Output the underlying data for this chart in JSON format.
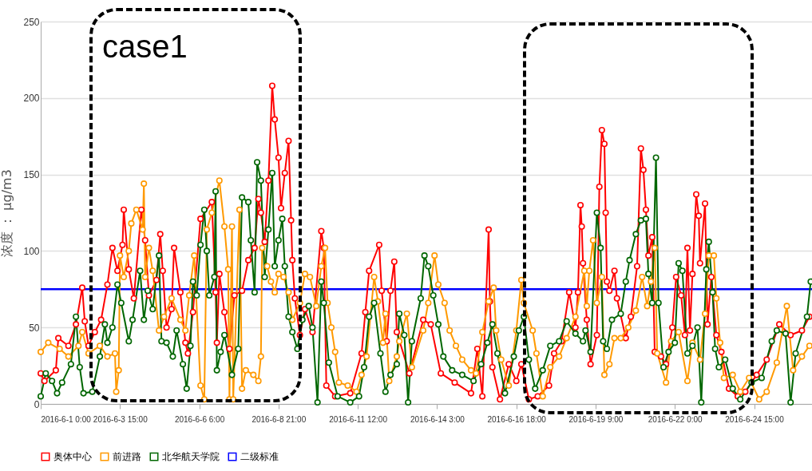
{
  "chart_data": {
    "type": "line",
    "ylabel": "浓度 ： μg/m3",
    "annotations": [
      "case1"
    ],
    "xlim": [
      "2016-06-01T00:00",
      "2016-06-26T13:00"
    ],
    "xticks": [
      {
        "value": "2016-06-01T00:00",
        "label": "2016-6-1 0:00"
      },
      {
        "value": "2016-06-03T15:00",
        "label": "2016-6-3 15:00"
      },
      {
        "value": "2016-06-06T06:00",
        "label": "2016-6-6 6:00"
      },
      {
        "value": "2016-06-08T21:00",
        "label": "2016-6-8 21:00"
      },
      {
        "value": "2016-06-11T12:00",
        "label": "2016-6-11 12:00"
      },
      {
        "value": "2016-06-14T03:00",
        "label": "2016-6-14 3:00"
      },
      {
        "value": "2016-06-16T18:00",
        "label": "2016-6-16 18:00"
      },
      {
        "value": "2016-06-19T09:00",
        "label": "2016-6-19 9:00"
      },
      {
        "value": "2016-06-22T00:00",
        "label": "2016-6-22 0:00"
      },
      {
        "value": "2016-06-24T15:00",
        "label": "2016-6-24 15:00"
      }
    ],
    "ylim": [
      0,
      250
    ],
    "yticks": [
      0,
      50,
      100,
      150,
      200,
      250
    ],
    "grid": "y",
    "legend": "bottom",
    "marker": "circle",
    "ref_lines": [
      {
        "axis": "y",
        "value": 75,
        "label": "二级标准",
        "color": "#0000ff"
      }
    ],
    "series": [
      {
        "name": "奥体中心",
        "color": "#ff0000",
        "x": [
          "2016-06-01T00:00",
          "2016-06-01T03:00",
          "2016-06-01T12:00",
          "2016-06-01T14:00",
          "2016-06-01T22:00",
          "2016-06-02T04:00",
          "2016-06-02T09:00",
          "2016-06-02T11:00",
          "2016-06-02T14:00",
          "2016-06-02T19:00",
          "2016-06-03T00:00",
          "2016-06-03T05:00",
          "2016-06-03T09:00",
          "2016-06-03T13:00",
          "2016-06-03T17:00",
          "2016-06-03T18:00",
          "2016-06-03T22:00",
          "2016-06-04T02:00",
          "2016-06-04T08:00",
          "2016-06-04T11:00",
          "2016-06-04T14:00",
          "2016-06-04T20:00",
          "2016-06-04T23:00",
          "2016-06-05T01:00",
          "2016-06-05T04:00",
          "2016-06-05T08:00",
          "2016-06-05T10:00",
          "2016-06-05T15:00",
          "2016-06-05T19:00",
          "2016-06-05T21:00",
          "2016-06-06T01:00",
          "2016-06-06T07:00",
          "2016-06-06T16:00",
          "2016-06-06T19:00",
          "2016-06-06T20:00",
          "2016-06-06T22:00",
          "2016-06-07T02:00",
          "2016-06-07T06:00",
          "2016-06-07T10:00",
          "2016-06-07T16:00",
          "2016-06-07T21:00",
          "2016-06-08T02:00",
          "2016-06-08T05:00",
          "2016-06-08T07:00",
          "2016-06-08T10:00",
          "2016-06-08T13:00",
          "2016-06-08T16:00",
          "2016-06-08T18:00",
          "2016-06-08T21:00",
          "2016-06-08T23:00",
          "2016-06-09T02:00",
          "2016-06-09T05:00",
          "2016-06-09T07:00",
          "2016-06-09T08:00",
          "2016-06-09T10:00",
          "2016-06-09T14:00",
          "2016-06-09T18:00",
          "2016-06-10T00:00",
          "2016-06-10T07:00",
          "2016-06-10T09:00",
          "2016-06-10T11:00",
          "2016-06-10T18:00",
          "2016-06-11T06:00",
          "2016-06-11T15:00",
          "2016-06-11T18:00",
          "2016-06-11T21:00",
          "2016-06-12T05:00",
          "2016-06-12T07:00",
          "2016-06-12T11:00",
          "2016-06-12T14:00",
          "2016-06-12T17:00",
          "2016-06-12T19:00",
          "2016-06-13T05:00",
          "2016-06-13T16:00",
          "2016-06-13T22:00",
          "2016-06-14T06:00",
          "2016-06-14T17:00",
          "2016-06-15T06:00",
          "2016-06-15T11:00",
          "2016-06-15T15:00",
          "2016-06-15T20:00",
          "2016-06-15T21:00",
          "2016-06-15T23:00",
          "2016-06-16T05:00",
          "2016-06-16T12:00",
          "2016-06-16T18:00",
          "2016-06-16T22:00",
          "2016-06-17T04:00",
          "2016-06-17T11:00",
          "2016-06-17T20:00",
          "2016-06-18T00:00",
          "2016-06-18T06:00",
          "2016-06-18T12:00",
          "2016-06-18T17:00",
          "2016-06-18T19:00",
          "2016-06-18T21:00",
          "2016-06-18T22:00",
          "2016-06-18T23:00",
          "2016-06-19T02:00",
          "2016-06-19T05:00",
          "2016-06-19T10:00",
          "2016-06-19T12:00",
          "2016-06-19T14:00",
          "2016-06-19T16:00",
          "2016-06-19T17:00",
          "2016-06-19T18:00",
          "2016-06-19T20:00",
          "2016-06-20T00:00",
          "2016-06-20T02:00",
          "2016-06-20T09:00",
          "2016-06-20T13:00",
          "2016-06-20T18:00",
          "2016-06-20T21:00",
          "2016-06-20T23:00",
          "2016-06-21T01:00",
          "2016-06-21T03:00",
          "2016-06-21T06:00",
          "2016-06-21T08:00",
          "2016-06-21T13:00",
          "2016-06-21T17:00",
          "2016-06-21T22:00",
          "2016-06-22T01:00",
          "2016-06-22T05:00",
          "2016-06-22T08:00",
          "2016-06-22T10:00",
          "2016-06-22T12:00",
          "2016-06-22T14:00",
          "2016-06-22T17:00",
          "2016-06-22T19:00",
          "2016-06-22T20:00",
          "2016-06-23T00:00",
          "2016-06-23T02:00",
          "2016-06-23T05:00",
          "2016-06-23T09:00",
          "2016-06-23T13:00",
          "2016-06-23T19:00",
          "2016-06-24T02:00",
          "2016-06-24T08:00",
          "2016-06-24T17:00",
          "2016-06-25T01:00",
          "2016-06-25T11:00",
          "2016-06-25T20:00",
          "2016-06-26T05:00",
          "2016-06-26T11:00"
        ],
        "values": [
          20,
          15,
          22,
          43,
          38,
          52,
          76,
          54,
          38,
          47,
          55,
          78,
          102,
          87,
          104,
          127,
          88,
          69,
          127,
          107,
          71,
          81,
          111,
          87,
          50,
          62,
          102,
          73,
          40,
          33,
          60,
          121,
          132,
          73,
          40,
          85,
          60,
          36,
          71,
          74,
          94,
          102,
          134,
          125,
          106,
          146,
          208,
          186,
          161,
          128,
          151,
          172,
          120,
          94,
          69,
          45,
          62,
          47,
          113,
          102,
          12,
          5,
          7,
          33,
          60,
          87,
          104,
          74,
          41,
          74,
          93,
          47,
          20,
          55,
          52,
          20,
          14,
          7,
          36,
          5,
          114,
          67,
          24,
          3,
          26,
          15,
          26,
          3,
          5,
          12,
          33,
          41,
          73,
          50,
          73,
          130,
          116,
          92,
          55,
          26,
          45,
          142,
          179,
          170,
          125,
          80,
          74,
          87,
          69,
          43,
          57,
          90,
          167,
          153,
          127,
          97,
          109,
          34,
          31,
          26,
          50,
          83,
          71,
          45,
          102,
          48,
          85,
          137,
          123,
          92,
          131,
          52,
          83,
          45,
          34,
          10,
          5,
          8,
          19,
          29,
          52,
          45,
          48,
          57
        ]
      },
      {
        "name": "前进路",
        "color": "#ff9900",
        "x": [
          "2016-06-01T00:00",
          "2016-06-01T06:00",
          "2016-06-01T15:00",
          "2016-06-01T22:00",
          "2016-06-02T06:00",
          "2016-06-02T09:00",
          "2016-06-02T14:00",
          "2016-06-02T23:00",
          "2016-06-03T05:00",
          "2016-06-03T11:00",
          "2016-06-03T12:00",
          "2016-06-03T14:00",
          "2016-06-03T15:00",
          "2016-06-03T18:00",
          "2016-06-03T22:00",
          "2016-06-04T00:00",
          "2016-06-04T04:00",
          "2016-06-04T09:00",
          "2016-06-04T10:00",
          "2016-06-04T11:00",
          "2016-06-04T14:00",
          "2016-06-04T17:00",
          "2016-06-04T22:00",
          "2016-06-05T02:00",
          "2016-06-05T08:00",
          "2016-06-05T15:00",
          "2016-06-05T19:00",
          "2016-06-05T22:00",
          "2016-06-06T02:00",
          "2016-06-06T07:00",
          "2016-06-06T10:00",
          "2016-06-06T12:00",
          "2016-06-06T16:00",
          "2016-06-06T22:00",
          "2016-06-07T02:00",
          "2016-06-07T05:00",
          "2016-06-07T06:00",
          "2016-06-07T08:00",
          "2016-06-07T09:00",
          "2016-06-07T14:00",
          "2016-06-07T16:00",
          "2016-06-07T19:00",
          "2016-06-08T01:00",
          "2016-06-08T05:00",
          "2016-06-08T07:00",
          "2016-06-08T08:00",
          "2016-06-08T12:00",
          "2016-06-08T15:00",
          "2016-06-08T18:00",
          "2016-06-08T21:00",
          "2016-06-09T01:00",
          "2016-06-09T05:00",
          "2016-06-09T08:00",
          "2016-06-09T14:00",
          "2016-06-09T18:00",
          "2016-06-09T22:00",
          "2016-06-10T03:00",
          "2016-06-10T07:00",
          "2016-06-10T10:00",
          "2016-06-10T12:00",
          "2016-06-10T15:00",
          "2016-06-10T18:00",
          "2016-06-10T21:00",
          "2016-06-11T04:00",
          "2016-06-11T11:00",
          "2016-06-11T15:00",
          "2016-06-11T19:00",
          "2016-06-12T01:00",
          "2016-06-12T04:00",
          "2016-06-12T08:00",
          "2016-06-12T10:00",
          "2016-06-12T13:00",
          "2016-06-12T19:00",
          "2016-06-12T21:00",
          "2016-06-13T03:00",
          "2016-06-13T07:00",
          "2016-06-13T16:00",
          "2016-06-13T20:00",
          "2016-06-14T01:00",
          "2016-06-14T04:00",
          "2016-06-14T09:00",
          "2016-06-14T13:00",
          "2016-06-14T18:00",
          "2016-06-14T23:00",
          "2016-06-15T06:00",
          "2016-06-15T10:00",
          "2016-06-15T15:00",
          "2016-06-15T20:00",
          "2016-06-16T00:00",
          "2016-06-16T02:00",
          "2016-06-16T06:00",
          "2016-06-16T12:00",
          "2016-06-16T18:00",
          "2016-06-16T22:00",
          "2016-06-17T00:00",
          "2016-06-17T07:00",
          "2016-06-17T10:00",
          "2016-06-17T15:00",
          "2016-06-17T21:00",
          "2016-06-18T04:00",
          "2016-06-18T10:00",
          "2016-06-18T17:00",
          "2016-06-19T00:00",
          "2016-06-19T02:00",
          "2016-06-19T04:00",
          "2016-06-19T07:00",
          "2016-06-19T10:00",
          "2016-06-19T14:00",
          "2016-06-19T16:00",
          "2016-06-19T20:00",
          "2016-06-20T00:00",
          "2016-06-20T05:00",
          "2016-06-20T11:00",
          "2016-06-20T17:00",
          "2016-06-20T22:00",
          "2016-06-21T02:00",
          "2016-06-21T05:00",
          "2016-06-21T08:00",
          "2016-06-21T10:00",
          "2016-06-21T17:00",
          "2016-06-21T21:00",
          "2016-06-22T03:00",
          "2016-06-22T10:00",
          "2016-06-22T14:00",
          "2016-06-22T20:00",
          "2016-06-23T00:00",
          "2016-06-23T03:00",
          "2016-06-23T07:00",
          "2016-06-23T09:00",
          "2016-06-23T12:00",
          "2016-06-23T15:00",
          "2016-06-23T22:00",
          "2016-06-24T04:00",
          "2016-06-24T11:00",
          "2016-06-24T19:00",
          "2016-06-25T01:00",
          "2016-06-25T09:00",
          "2016-06-25T17:00",
          "2016-06-25T22:00",
          "2016-06-26T05:00",
          "2016-06-26T11:00"
        ],
        "values": [
          34,
          40,
          36,
          31,
          38,
          47,
          33,
          38,
          31,
          33,
          8,
          22,
          97,
          83,
          100,
          118,
          127,
          114,
          144,
          83,
          102,
          87,
          48,
          57,
          69,
          55,
          48,
          71,
          97,
          12,
          3,
          114,
          125,
          146,
          116,
          88,
          3,
          116,
          3,
          127,
          10,
          22,
          19,
          15,
          31,
          102,
          90,
          80,
          73,
          85,
          83,
          73,
          55,
          66,
          85,
          83,
          64,
          90,
          102,
          66,
          50,
          34,
          14,
          12,
          8,
          19,
          31,
          83,
          67,
          40,
          59,
          15,
          31,
          41,
          59,
          24,
          48,
          66,
          97,
          78,
          66,
          48,
          38,
          29,
          22,
          20,
          47,
          67,
          76,
          48,
          29,
          12,
          48,
          81,
          66,
          48,
          33,
          5,
          24,
          31,
          43,
          57,
          87,
          64,
          87,
          107,
          66,
          83,
          19,
          26,
          43,
          43,
          50,
          61,
          83,
          64,
          80,
          102,
          33,
          14,
          41,
          47,
          15,
          40,
          29,
          59,
          97,
          97,
          69,
          40,
          17,
          19,
          8,
          17,
          3,
          8,
          27,
          64,
          22,
          31,
          38
        ]
      },
      {
        "name": "北华航天学院",
        "color": "#006600",
        "x": [
          "2016-06-01T00:00",
          "2016-06-01T04:00",
          "2016-06-01T09:00",
          "2016-06-01T13:00",
          "2016-06-01T17:00",
          "2016-06-02T00:00",
          "2016-06-02T04:00",
          "2016-06-02T07:00",
          "2016-06-02T10:00",
          "2016-06-02T17:00",
          "2016-06-02T23:00",
          "2016-06-03T03:00",
          "2016-06-03T05:00",
          "2016-06-03T09:00",
          "2016-06-03T13:00",
          "2016-06-03T16:00",
          "2016-06-03T22:00",
          "2016-06-04T01:00",
          "2016-06-04T07:00",
          "2016-06-04T10:00",
          "2016-06-04T13:00",
          "2016-06-04T17:00",
          "2016-06-04T22:00",
          "2016-06-05T00:00",
          "2016-06-05T04:00",
          "2016-06-05T09:00",
          "2016-06-05T12:00",
          "2016-06-05T17:00",
          "2016-06-05T20:00",
          "2016-06-05T23:00",
          "2016-06-06T01:00",
          "2016-06-06T04:00",
          "2016-06-06T07:00",
          "2016-06-06T10:00",
          "2016-06-06T12:00",
          "2016-06-06T14:00",
          "2016-06-06T18:00",
          "2016-06-06T19:00",
          "2016-06-06T20:00",
          "2016-06-06T23:00",
          "2016-06-07T02:00",
          "2016-06-07T08:00",
          "2016-06-07T13:00",
          "2016-06-07T16:00",
          "2016-06-07T21:00",
          "2016-06-07T23:00",
          "2016-06-08T02:00",
          "2016-06-08T04:00",
          "2016-06-08T07:00",
          "2016-06-08T10:00",
          "2016-06-08T13:00",
          "2016-06-08T16:00",
          "2016-06-08T18:00",
          "2016-06-08T21:00",
          "2016-06-09T00:00",
          "2016-06-09T02:00",
          "2016-06-09T05:00",
          "2016-06-09T08:00",
          "2016-06-09T12:00",
          "2016-06-09T16:00",
          "2016-06-09T21:00",
          "2016-06-10T00:00",
          "2016-06-10T04:00",
          "2016-06-10T07:00",
          "2016-06-10T09:00",
          "2016-06-10T13:00",
          "2016-06-10T20:00",
          "2016-06-11T06:00",
          "2016-06-11T13:00",
          "2016-06-11T17:00",
          "2016-06-11T21:00",
          "2016-06-12T01:00",
          "2016-06-12T06:00",
          "2016-06-12T10:00",
          "2016-06-12T14:00",
          "2016-06-12T19:00",
          "2016-06-12T21:00",
          "2016-06-13T01:00",
          "2016-06-13T04:00",
          "2016-06-13T07:00",
          "2016-06-13T14:00",
          "2016-06-13T17:00",
          "2016-06-13T20:00",
          "2016-06-14T00:00",
          "2016-06-14T04:00",
          "2016-06-14T08:00",
          "2016-06-14T15:00",
          "2016-06-14T23:00",
          "2016-06-15T08:00",
          "2016-06-15T14:00",
          "2016-06-15T19:00",
          "2016-06-15T23:00",
          "2016-06-16T03:00",
          "2016-06-16T09:00",
          "2016-06-16T16:00",
          "2016-06-16T20:00",
          "2016-06-17T00:00",
          "2016-06-17T04:00",
          "2016-06-17T09:00",
          "2016-06-17T15:00",
          "2016-06-17T21:00",
          "2016-06-18T04:00",
          "2016-06-18T10:00",
          "2016-06-18T17:00",
          "2016-06-18T23:00",
          "2016-06-19T01:00",
          "2016-06-19T05:00",
          "2016-06-19T10:00",
          "2016-06-19T13:00",
          "2016-06-19T15:00",
          "2016-06-19T18:00",
          "2016-06-19T22:00",
          "2016-06-20T05:00",
          "2016-06-20T09:00",
          "2016-06-20T12:00",
          "2016-06-20T17:00",
          "2016-06-20T21:00",
          "2016-06-21T01:00",
          "2016-06-21T03:00",
          "2016-06-21T06:00",
          "2016-06-21T09:00",
          "2016-06-21T11:00",
          "2016-06-21T15:00",
          "2016-06-21T19:00",
          "2016-06-22T00:00",
          "2016-06-22T03:00",
          "2016-06-22T06:00",
          "2016-06-22T10:00",
          "2016-06-22T14:00",
          "2016-06-22T18:00",
          "2016-06-22T21:00",
          "2016-06-23T01:00",
          "2016-06-23T03:00",
          "2016-06-23T06:00",
          "2016-06-23T08:00",
          "2016-06-23T11:00",
          "2016-06-23T16:00",
          "2016-06-23T22:00",
          "2016-06-24T04:00",
          "2016-06-24T13:00",
          "2016-06-24T21:00",
          "2016-06-25T05:00",
          "2016-06-25T09:00",
          "2016-06-25T16:00",
          "2016-06-25T20:00",
          "2016-06-26T00:00",
          "2016-06-26T09:00",
          "2016-06-26T12:00"
        ],
        "values": [
          5,
          20,
          15,
          7,
          14,
          26,
          57,
          24,
          7,
          8,
          31,
          52,
          40,
          50,
          78,
          66,
          41,
          55,
          87,
          55,
          74,
          62,
          97,
          41,
          40,
          31,
          48,
          26,
          10,
          38,
          80,
          71,
          104,
          127,
          100,
          71,
          83,
          139,
          22,
          34,
          45,
          19,
          36,
          135,
          132,
          107,
          73,
          158,
          146,
          83,
          114,
          151,
          90,
          107,
          121,
          90,
          57,
          47,
          36,
          55,
          64,
          50,
          1,
          80,
          66,
          27,
          5,
          1,
          5,
          24,
          57,
          66,
          33,
          8,
          19,
          26,
          59,
          45,
          1,
          41,
          69,
          97,
          90,
          71,
          52,
          31,
          22,
          19,
          15,
          26,
          40,
          52,
          33,
          7,
          31,
          48,
          57,
          29,
          10,
          22,
          38,
          41,
          54,
          46,
          41,
          48,
          34,
          125,
          102,
          41,
          36,
          55,
          59,
          80,
          94,
          111,
          120,
          121,
          85,
          66,
          161,
          66,
          24,
          34,
          40,
          92,
          87,
          33,
          38,
          50,
          1,
          88,
          106,
          73,
          36,
          24,
          29,
          10,
          3,
          14,
          17,
          41,
          48,
          46,
          1,
          33,
          57,
          80
        ]
      }
    ]
  }
}
